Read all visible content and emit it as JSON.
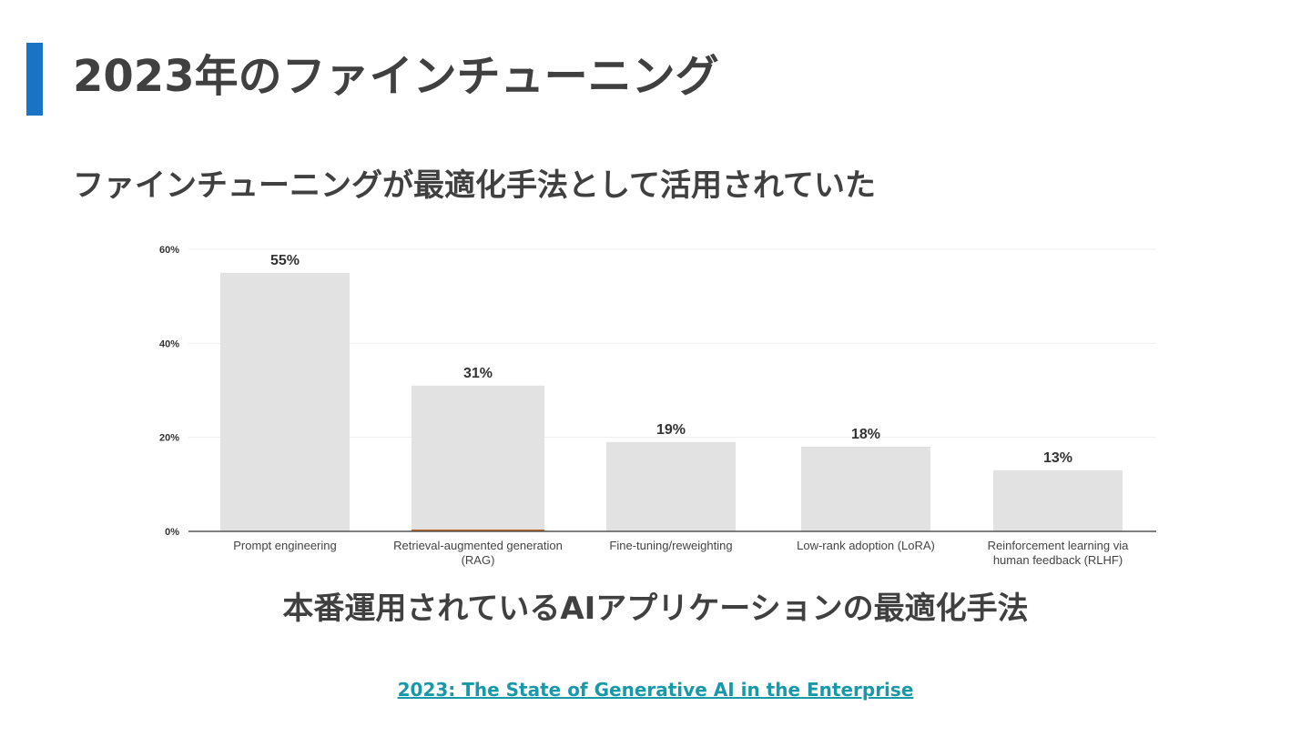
{
  "slide": {
    "title": "2023年のファインチューニング",
    "subtitle": "ファインチューニングが最適化手法として活用されていた",
    "caption": "本番運用されているAIアプリケーションの最適化手法",
    "source_link": "2023: The State of Generative AI in the Enterprise"
  },
  "colors": {
    "accent": "#1a73c4",
    "bar": "#e2e2e2",
    "text": "#404040",
    "link": "#1799a8",
    "rag_baseline_mark": "#c0641e"
  },
  "chart_data": {
    "type": "bar",
    "categories": [
      [
        "Prompt engineering"
      ],
      [
        "Retrieval-augmented generation",
        "(RAG)"
      ],
      [
        "Fine-tuning/reweighting"
      ],
      [
        "Low-rank adoption (LoRA)"
      ],
      [
        "Reinforcement learning via",
        "human feedback (RLHF)"
      ]
    ],
    "values": [
      55,
      31,
      19,
      18,
      13
    ],
    "value_labels": [
      "55%",
      "31%",
      "19%",
      "18%",
      "13%"
    ],
    "yticks": [
      0,
      20,
      40,
      60
    ],
    "ytick_labels": [
      "0%",
      "20%",
      "40%",
      "60%"
    ],
    "ylim": [
      0,
      60
    ],
    "grid": true,
    "legend": "none"
  }
}
